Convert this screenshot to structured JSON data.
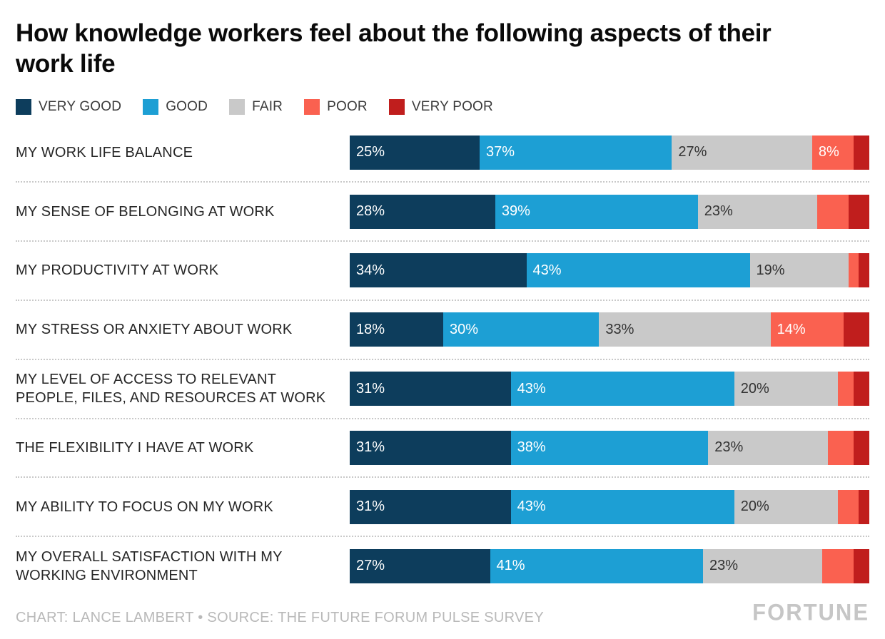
{
  "title": "How knowledge workers feel about the following aspects of their work life",
  "legend": [
    {
      "label": "VERY GOOD",
      "color": "#0d3d5c"
    },
    {
      "label": "GOOD",
      "color": "#1d9fd4"
    },
    {
      "label": "FAIR",
      "color": "#c9c9c9"
    },
    {
      "label": "POOR",
      "color": "#fa6150"
    },
    {
      "label": "VERY POOR",
      "color": "#c01e1d"
    }
  ],
  "chart_data": {
    "type": "bar",
    "orientation": "horizontal",
    "stacked": true,
    "title": "How knowledge workers feel about the following aspects of their work life",
    "xlim": [
      0,
      100
    ],
    "units": "%",
    "label_threshold": 8,
    "categories": [
      "MY WORK LIFE BALANCE",
      "MY SENSE OF BELONGING AT WORK",
      "MY PRODUCTIVITY AT WORK",
      "MY STRESS OR ANXIETY ABOUT WORK",
      "MY LEVEL OF ACCESS TO RELEVANT PEOPLE, FILES, AND RESOURCES AT WORK",
      "THE FLEXIBILITY I HAVE AT WORK",
      "MY ABILITY TO FOCUS ON MY WORK",
      "MY OVERALL SATISFACTION WITH MY WORKING ENVIRONMENT"
    ],
    "series": [
      {
        "name": "Very good",
        "color": "#0d3d5c",
        "label_color": "#ffffff",
        "values": [
          25,
          28,
          34,
          18,
          31,
          31,
          31,
          27
        ]
      },
      {
        "name": "Good",
        "color": "#1d9fd4",
        "label_color": "#ffffff",
        "values": [
          37,
          39,
          43,
          30,
          43,
          38,
          43,
          41
        ]
      },
      {
        "name": "Fair",
        "color": "#c9c9c9",
        "label_color": "#333333",
        "values": [
          27,
          23,
          19,
          33,
          20,
          23,
          20,
          23
        ]
      },
      {
        "name": "Poor",
        "color": "#fa6150",
        "label_color": "#ffffff",
        "values": [
          8,
          6,
          2,
          14,
          3,
          5,
          4,
          6
        ]
      },
      {
        "name": "Very poor",
        "color": "#c01e1d",
        "label_color": "#ffffff",
        "values": [
          3,
          4,
          2,
          5,
          3,
          3,
          2,
          3
        ]
      }
    ],
    "legend_position": "top",
    "grid": false
  },
  "footer": {
    "credit": "CHART: LANCE LAMBERT • SOURCE: THE FUTURE FORUM PULSE SURVEY",
    "brand": "FORTUNE"
  }
}
